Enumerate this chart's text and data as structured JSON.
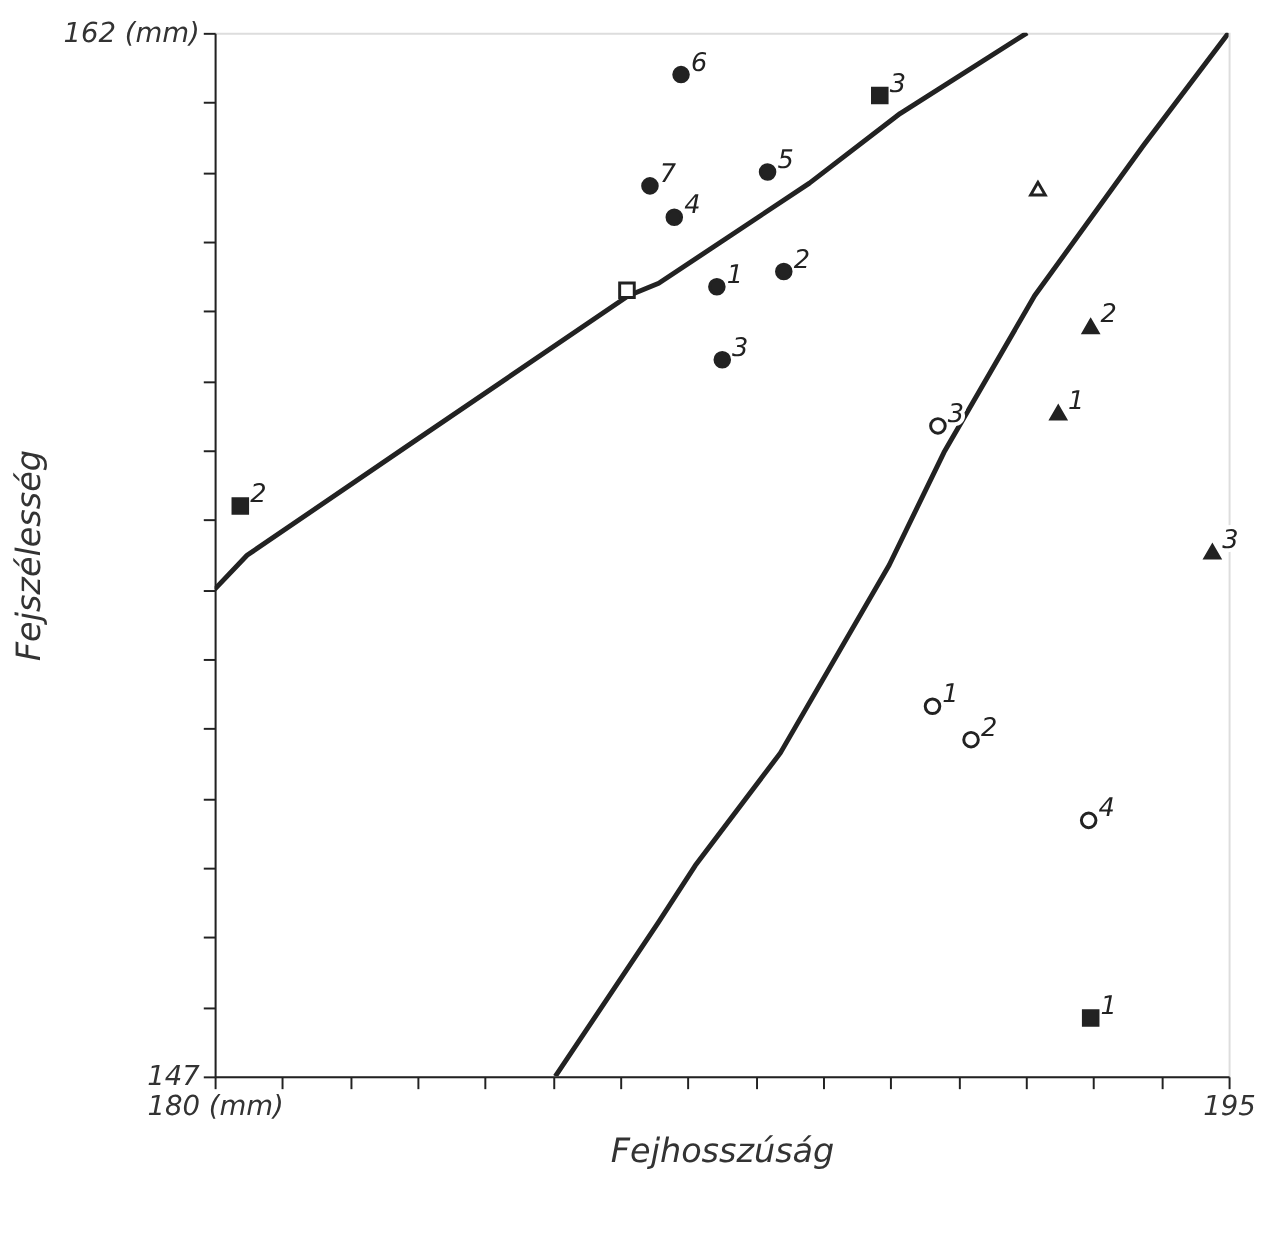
{
  "chart_data": {
    "type": "scatter",
    "xlabel": "Fejhosszúság",
    "ylabel": "Fejszélesség",
    "xlim": [
      180,
      195
    ],
    "ylim": [
      147,
      162
    ],
    "xticks": [
      {
        "value": 180,
        "label": "180 (mm)"
      },
      {
        "value": 181,
        "label": null
      },
      {
        "value": 182,
        "label": null
      },
      {
        "value": 183,
        "label": null
      },
      {
        "value": 184,
        "label": null
      },
      {
        "value": 185,
        "label": null
      },
      {
        "value": 186,
        "label": null
      },
      {
        "value": 187,
        "label": null
      },
      {
        "value": 188,
        "label": null
      },
      {
        "value": 189,
        "label": null
      },
      {
        "value": 190,
        "label": null
      },
      {
        "value": 191,
        "label": null
      },
      {
        "value": 192,
        "label": null
      },
      {
        "value": 193,
        "label": null
      },
      {
        "value": 194,
        "label": null
      },
      195
    ],
    "yticks": [
      147,
      {
        "value": 148,
        "label": null
      },
      {
        "value": 149,
        "label": null
      },
      {
        "value": 150,
        "label": null
      },
      {
        "value": 151,
        "label": null
      },
      {
        "value": 152,
        "label": null
      },
      {
        "value": 153,
        "label": null
      },
      {
        "value": 154,
        "label": null
      },
      {
        "value": 155,
        "label": null
      },
      {
        "value": 156,
        "label": null
      },
      {
        "value": 157,
        "label": null
      },
      {
        "value": 158,
        "label": null
      },
      {
        "value": 159,
        "label": null
      },
      {
        "value": 160,
        "label": null
      },
      {
        "value": 161,
        "label": null
      },
      {
        "value": 162,
        "label": "162 (mm)"
      }
    ],
    "grid": false,
    "series": [
      {
        "marker": "circle",
        "color": "#222222",
        "x": [
          186.9,
          186.44,
          186.8,
          188.18,
          187.43,
          188.42,
          187.51
        ],
        "values": [
          161.4,
          159.8,
          159.35,
          160.0,
          158.35,
          158.57,
          157.3
        ]
      },
      {
        "marker": "square",
        "color": "#222222",
        "x": [
          189.84,
          180.38,
          192.96
        ],
        "values": [
          161.1,
          155.2,
          147.84
        ]
      },
      {
        "marker": "square",
        "color": "#ffffff",
        "x": [
          186.1
        ],
        "values": [
          158.3
        ]
      },
      {
        "marker": "triangle",
        "color": "#ffffff",
        "x": [
          192.18
        ],
        "values": [
          159.76
        ]
      },
      {
        "marker": "triangle",
        "color": "#222222",
        "x": [
          192.96,
          192.48,
          194.76
        ],
        "values": [
          157.78,
          156.54,
          154.54
        ]
      },
      {
        "marker": "circle",
        "color": "#ffffff",
        "x": [
          190.7,
          190.62,
          191.19,
          192.93
        ],
        "values": [
          156.35,
          152.32,
          151.84,
          150.68
        ]
      },
      {
        "type": "line",
        "marker": "none",
        "line_style": "solid",
        "color": "#222222",
        "x": [
          180,
          180.48,
          183.0,
          186.12,
          186.57,
          188.8,
          190.14,
          192.02
        ],
        "values": [
          154.0,
          154.49,
          156.16,
          158.22,
          158.4,
          159.84,
          160.84,
          162
        ]
      },
      {
        "type": "line",
        "marker": "none",
        "line_style": "solid",
        "color": "#222222",
        "x": [
          185.04,
          186.57,
          187.11,
          188.37,
          189.98,
          190.79,
          192.13,
          193.74,
          195
        ],
        "values": [
          147.0,
          149.22,
          150.03,
          151.65,
          154.35,
          155.97,
          158.22,
          160.38,
          162
        ]
      }
    ],
    "annotations": [
      {
        "text": "6",
        "x": 186.9,
        "y": 161.4
      },
      {
        "text": "7",
        "x": 186.44,
        "y": 159.8
      },
      {
        "text": "4",
        "x": 186.8,
        "y": 159.35
      },
      {
        "text": "5",
        "x": 188.18,
        "y": 160.0
      },
      {
        "text": "1",
        "x": 187.43,
        "y": 158.35
      },
      {
        "text": "2",
        "x": 188.42,
        "y": 158.57
      },
      {
        "text": "3",
        "x": 187.51,
        "y": 157.3
      },
      {
        "text": "3",
        "x": 189.84,
        "y": 161.1
      },
      {
        "text": "2",
        "x": 180.38,
        "y": 155.2
      },
      {
        "text": "1",
        "x": 192.96,
        "y": 147.84
      },
      {
        "text": "2",
        "x": 192.96,
        "y": 157.78
      },
      {
        "text": "1",
        "x": 192.48,
        "y": 156.54
      },
      {
        "text": "3",
        "x": 194.76,
        "y": 154.54
      },
      {
        "text": "3",
        "x": 190.7,
        "y": 156.35
      },
      {
        "text": "1",
        "x": 190.62,
        "y": 152.32
      },
      {
        "text": "2",
        "x": 191.19,
        "y": 151.84
      },
      {
        "text": "4",
        "x": 192.93,
        "y": 150.68
      }
    ]
  }
}
